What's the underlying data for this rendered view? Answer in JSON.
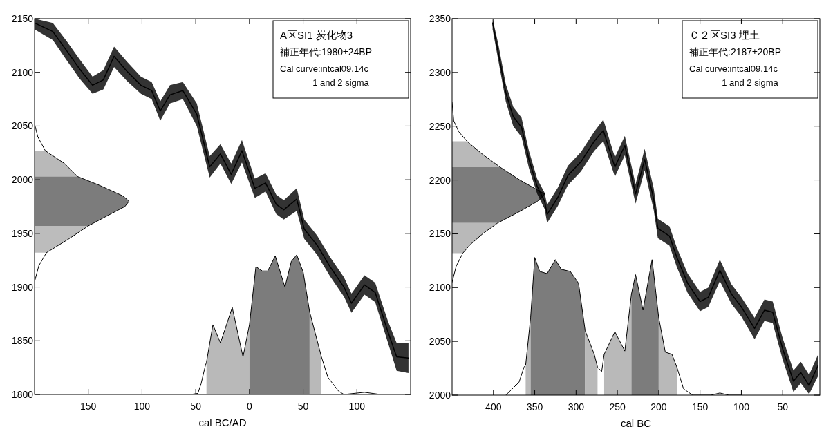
{
  "chart_data": [
    {
      "type": "line",
      "xlabel": "cal BC/AD",
      "annotations": [
        "A区SI1 炭化物3",
        "補正年代:1980±24BP",
        "Cal curve:intcal09.14c",
        "1 and 2 sigma"
      ],
      "xlim": [
        -200,
        150
      ],
      "ylim": [
        1800,
        2150
      ],
      "xticks": [
        {
          "value": -150,
          "label": "150"
        },
        {
          "value": -100,
          "label": "100"
        },
        {
          "value": -50,
          "label": "50"
        },
        0,
        50,
        100
      ],
      "yticks": [
        1800,
        1850,
        1900,
        1950,
        2000,
        2050,
        2100,
        2150
      ],
      "series": [
        {
          "type": "area",
          "color": "#b9b9b9",
          "x": [
            -200,
            -190,
            -172,
            -160,
            -200
          ],
          "values": [
            2027,
            2027,
            2015,
            2003,
            2003
          ]
        },
        {
          "type": "area",
          "color": "#7c7c7c",
          "x": [
            -200,
            -160,
            -140,
            -118,
            -112,
            -116,
            -135,
            -150,
            -200
          ],
          "values": [
            2003,
            2003,
            1995,
            1985,
            1980,
            1975,
            1965,
            1957,
            1957
          ]
        },
        {
          "type": "area",
          "color": "#bcbcbc",
          "x": [
            -200,
            -150,
            -168,
            -189,
            -200
          ],
          "values": [
            1957,
            1957,
            1945,
            1932,
            1932
          ]
        },
        {
          "color": "#000000",
          "x": [
            -200,
            -197,
            -190,
            -172,
            -160,
            -140,
            -118,
            -112,
            -116,
            -135,
            -150,
            -168,
            -189,
            -196,
            -200
          ],
          "values": [
            2052,
            2040,
            2027,
            2015,
            2003,
            1995,
            1985,
            1980,
            1975,
            1965,
            1957,
            1945,
            1932,
            1920,
            1905
          ]
        },
        {
          "type": "area",
          "color": "#b9b9b9",
          "x": [
            -40,
            -40,
            -34,
            -27,
            -16,
            -6,
            0,
            0
          ],
          "values": [
            1800,
            1830,
            1865,
            1848,
            1881,
            1835,
            1865,
            1800
          ]
        },
        {
          "type": "area",
          "color": "#7c7c7c",
          "x": [
            0,
            0,
            6,
            12,
            17,
            24,
            33,
            39,
            44,
            50,
            56,
            56
          ],
          "values": [
            1800,
            1865,
            1919,
            1915,
            1915,
            1929,
            1900,
            1924,
            1930,
            1914,
            1877,
            1800
          ]
        },
        {
          "type": "area",
          "color": "#b9b9b9",
          "x": [
            56,
            56,
            67,
            67
          ],
          "values": [
            1800,
            1877,
            1835,
            1800
          ]
        },
        {
          "color": "#000000",
          "x": [
            -55,
            -48,
            -45,
            -41,
            -40,
            -34,
            -27,
            -16,
            -6,
            0,
            6,
            12,
            17,
            24,
            33,
            39,
            44,
            50,
            56,
            67,
            73,
            83,
            88,
            107,
            122
          ],
          "values": [
            1800,
            1801,
            1810,
            1827,
            1830,
            1865,
            1848,
            1881,
            1835,
            1865,
            1919,
            1915,
            1915,
            1929,
            1900,
            1924,
            1930,
            1914,
            1877,
            1835,
            1816,
            1803,
            1800,
            1802,
            1800
          ]
        },
        {
          "color": "#000000",
          "x": [
            -200,
            -183,
            -170,
            -158,
            -146,
            -136,
            -126,
            -114,
            -101,
            -91,
            -83,
            -74,
            -62,
            -49,
            -37,
            -27,
            -17,
            -7,
            5,
            15,
            25,
            32,
            44,
            51,
            63,
            75,
            88,
            95,
            107,
            117,
            129,
            137,
            148
          ],
          "values": [
            2146,
            2138,
            2120,
            2103,
            2088,
            2093,
            2115,
            2101,
            2088,
            2083,
            2064,
            2079,
            2083,
            2061,
            2012,
            2024,
            2005,
            2027,
            1992,
            1997,
            1977,
            1972,
            1982,
            1954,
            1939,
            1919,
            1900,
            1885,
            1902,
            1895,
            1858,
            1835,
            1834
          ],
          "lower": [
            2140,
            2130,
            2111,
            2094,
            2080,
            2084,
            2105,
            2092,
            2080,
            2075,
            2055,
            2071,
            2075,
            2050,
            2002,
            2015,
            1996,
            2016,
            1983,
            1989,
            1968,
            1963,
            1971,
            1945,
            1930,
            1910,
            1891,
            1876,
            1893,
            1886,
            1848,
            1822,
            1820
          ],
          "upper": [
            2150,
            2146,
            2129,
            2112,
            2096,
            2102,
            2124,
            2110,
            2096,
            2091,
            2073,
            2088,
            2091,
            2071,
            2022,
            2033,
            2015,
            2037,
            2001,
            2006,
            1986,
            1981,
            1992,
            1963,
            1948,
            1928,
            1909,
            1894,
            1911,
            1904,
            1868,
            1848,
            1848
          ]
        }
      ]
    },
    {
      "type": "line",
      "xlabel": "cal BC",
      "annotations": [
        "Ｃ２区SI3 埋土",
        "補正年代:2187±20BP",
        "Cal curve:intcal09.14c",
        "1 and 2 sigma"
      ],
      "xlim": [
        -450,
        -5
      ],
      "ylim": [
        2000,
        2350
      ],
      "xticks": [
        {
          "value": -400,
          "label": "400"
        },
        {
          "value": -350,
          "label": "350"
        },
        {
          "value": -300,
          "label": "300"
        },
        {
          "value": -250,
          "label": "250"
        },
        {
          "value": -200,
          "label": "200"
        },
        {
          "value": -150,
          "label": "150"
        },
        {
          "value": -100,
          "label": "100"
        },
        {
          "value": -50,
          "label": "50"
        }
      ],
      "yticks": [
        2000,
        2050,
        2100,
        2150,
        2200,
        2250,
        2300,
        2350
      ],
      "series": [
        {
          "type": "area",
          "color": "#b9b9b9",
          "x": [
            -450,
            -432,
            -415,
            -392,
            -450
          ],
          "values": [
            2236,
            2236,
            2225,
            2212,
            2212
          ]
        },
        {
          "type": "area",
          "color": "#7c7c7c",
          "x": [
            -450,
            -392,
            -368,
            -345,
            -338,
            -347,
            -370,
            -395,
            -450
          ],
          "values": [
            2212,
            2212,
            2200,
            2190,
            2187,
            2180,
            2170,
            2160,
            2160
          ]
        },
        {
          "type": "area",
          "color": "#b9b9b9",
          "x": [
            -450,
            -395,
            -413,
            -428,
            -437,
            -450
          ],
          "values": [
            2160,
            2160,
            2150,
            2140,
            2132,
            2132
          ]
        },
        {
          "color": "#000000",
          "x": [
            -450,
            -448,
            -442,
            -432,
            -415,
            -392,
            -368,
            -345,
            -338,
            -347,
            -370,
            -395,
            -413,
            -428,
            -437,
            -445,
            -450
          ],
          "values": [
            2272,
            2255,
            2245,
            2236,
            2225,
            2212,
            2200,
            2190,
            2187,
            2180,
            2170,
            2160,
            2150,
            2140,
            2132,
            2120,
            2105
          ]
        },
        {
          "type": "area",
          "color": "#b9b9b9",
          "x": [
            -361,
            -361,
            -355,
            -355
          ],
          "values": [
            2000,
            2028,
            2072,
            2000
          ]
        },
        {
          "type": "area",
          "color": "#7c7c7c",
          "x": [
            -355,
            -355,
            -350,
            -344,
            -335,
            -325,
            -318,
            -307,
            -297,
            -289,
            -289
          ],
          "values": [
            2000,
            2072,
            2128,
            2115,
            2113,
            2126,
            2117,
            2115,
            2104,
            2060,
            2000
          ]
        },
        {
          "type": "area",
          "color": "#b9b9b9",
          "x": [
            -289,
            -289,
            -278,
            -274,
            -274
          ],
          "values": [
            2000,
            2060,
            2038,
            2026,
            2000
          ]
        },
        {
          "type": "area",
          "color": "#b9b9b9",
          "x": [
            -266,
            -266,
            -253,
            -241,
            -233,
            -233
          ],
          "values": [
            2000,
            2038,
            2059,
            2041,
            2094,
            2000
          ]
        },
        {
          "type": "area",
          "color": "#7c7c7c",
          "x": [
            -233,
            -233,
            -228,
            -219,
            -208,
            -200,
            -200
          ],
          "values": [
            2000,
            2094,
            2112,
            2079,
            2126,
            2072,
            2000
          ]
        },
        {
          "type": "area",
          "color": "#b9b9b9",
          "x": [
            -200,
            -200,
            -192,
            -184,
            -178,
            -178
          ],
          "values": [
            2000,
            2072,
            2040,
            2038,
            2026,
            2000
          ]
        },
        {
          "color": "#000000",
          "x": [
            -385,
            -369,
            -363,
            -361,
            -355,
            -350,
            -344,
            -335,
            -325,
            -318,
            -307,
            -297,
            -289,
            -278,
            -274,
            -269,
            -266,
            -253,
            -241,
            -233,
            -228,
            -219,
            -208,
            -200,
            -192,
            -184,
            -178,
            -170,
            -159,
            -137,
            -126,
            -115,
            -100
          ],
          "values": [
            2000,
            2012,
            2026,
            2028,
            2072,
            2128,
            2115,
            2113,
            2126,
            2117,
            2115,
            2104,
            2060,
            2038,
            2026,
            2022,
            2038,
            2059,
            2041,
            2094,
            2112,
            2079,
            2126,
            2072,
            2040,
            2038,
            2026,
            2006,
            2000,
            2000,
            2002,
            2000,
            2000
          ]
        },
        {
          "color": "#000000",
          "x": [
            -401,
            -394,
            -385,
            -376,
            -366,
            -357,
            -347,
            -338,
            -335,
            -322,
            -310,
            -294,
            -278,
            -267,
            -253,
            -241,
            -228,
            -217,
            -206,
            -201,
            -187,
            -178,
            -165,
            -150,
            -140,
            -126,
            -112,
            -100,
            -84,
            -72,
            -62,
            -50,
            -37,
            -28,
            -18,
            -7
          ],
          "values": [
            2346,
            2318,
            2281,
            2259,
            2249,
            2219,
            2194,
            2180,
            2168,
            2184,
            2204,
            2217,
            2236,
            2246,
            2212,
            2232,
            2187,
            2219,
            2182,
            2155,
            2148,
            2128,
            2104,
            2087,
            2091,
            2116,
            2094,
            2082,
            2062,
            2079,
            2077,
            2043,
            2013,
            2021,
            2009,
            2028
          ],
          "lower": [
            2340,
            2311,
            2273,
            2250,
            2240,
            2211,
            2187,
            2173,
            2160,
            2176,
            2195,
            2208,
            2227,
            2236,
            2203,
            2223,
            2178,
            2209,
            2172,
            2146,
            2139,
            2119,
            2095,
            2078,
            2082,
            2106,
            2085,
            2073,
            2052,
            2069,
            2067,
            2033,
            2003,
            2011,
            2001,
            2018
          ],
          "upper": [
            2350,
            2326,
            2289,
            2268,
            2258,
            2227,
            2201,
            2188,
            2177,
            2193,
            2213,
            2226,
            2245,
            2256,
            2221,
            2241,
            2196,
            2229,
            2192,
            2164,
            2157,
            2137,
            2113,
            2096,
            2100,
            2126,
            2103,
            2091,
            2072,
            2089,
            2087,
            2053,
            2023,
            2031,
            2019,
            2038
          ]
        }
      ]
    }
  ]
}
